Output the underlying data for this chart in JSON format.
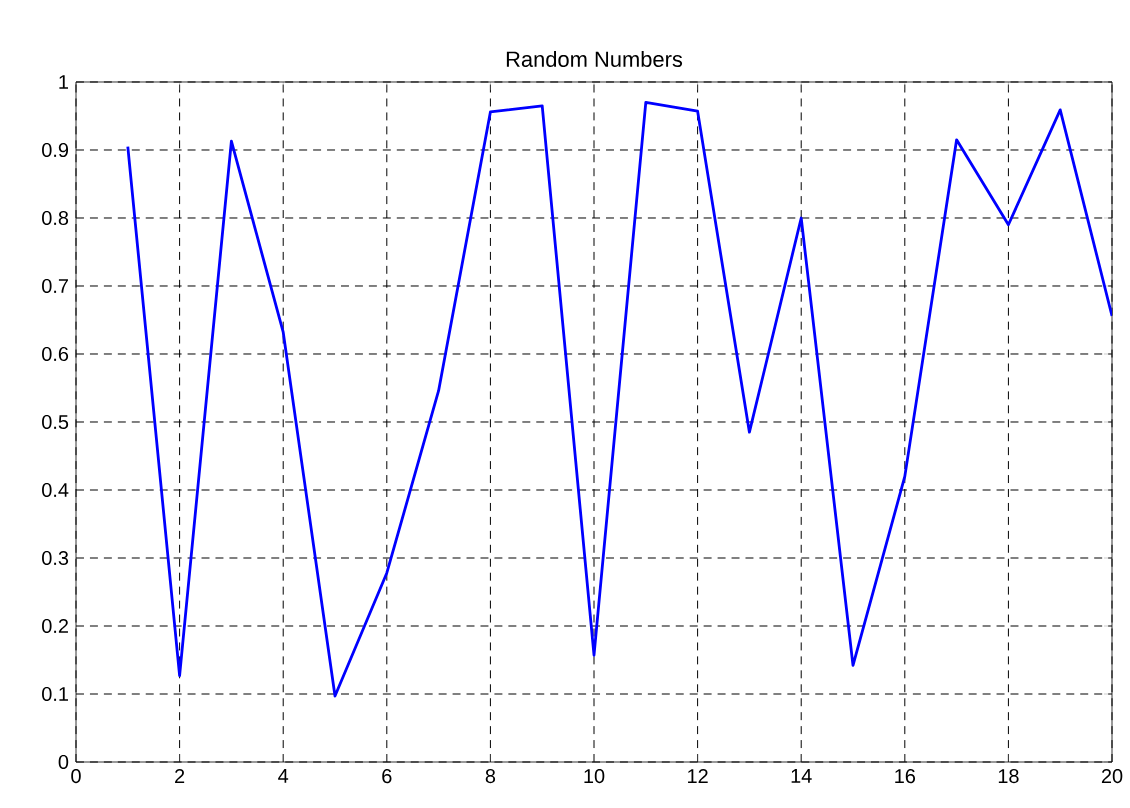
{
  "chart_data": {
    "type": "line",
    "title": "Random Numbers",
    "x": [
      1,
      2,
      3,
      4,
      5,
      6,
      7,
      8,
      9,
      10,
      11,
      12,
      13,
      14,
      15,
      16,
      17,
      18,
      19,
      20
    ],
    "series": [
      {
        "color": "#0000ff",
        "values": [
          0.905,
          0.127,
          0.913,
          0.632,
          0.097,
          0.278,
          0.546,
          0.956,
          0.965,
          0.157,
          0.97,
          0.957,
          0.485,
          0.8,
          0.142,
          0.42,
          0.915,
          0.79,
          0.959,
          0.656
        ]
      }
    ],
    "xlim": [
      0,
      20
    ],
    "ylim": [
      0,
      1
    ],
    "xticks": [
      0,
      2,
      4,
      6,
      8,
      10,
      12,
      14,
      16,
      18,
      20
    ],
    "yticks": [
      0,
      0.1,
      0.2,
      0.3,
      0.4,
      0.5,
      0.6,
      0.7,
      0.8,
      0.9,
      1
    ],
    "grid": true,
    "marker": "none",
    "line_style": "solid"
  }
}
